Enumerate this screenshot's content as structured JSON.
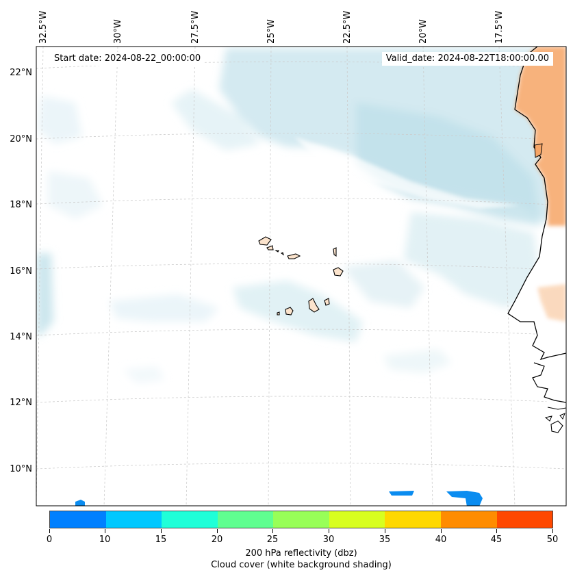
{
  "map": {
    "start_date": "Start date: 2024-08-22_00:00:00",
    "valid_date": "Valid_date: 2024-08-22T18:00:00.00",
    "lon_labels": [
      "32.5°W",
      "30°W",
      "27.5°W",
      "25°W",
      "22.5°W",
      "20°W",
      "17.5°W"
    ],
    "lat_labels": [
      "22°N",
      "20°N",
      "18°N",
      "16°N",
      "14°N",
      "12°N",
      "10°N"
    ]
  },
  "colorbar": {
    "ticks": [
      "0",
      "10",
      "15",
      "20",
      "25",
      "30",
      "35",
      "40",
      "45",
      "50"
    ],
    "colors": [
      "#0080ff",
      "#00c8ff",
      "#20ffd8",
      "#60ff90",
      "#98ff58",
      "#d8ff20",
      "#ffd800",
      "#ff8c00",
      "#ff4800"
    ],
    "title": "200 hPa reflectivity (dbz)",
    "subtitle": "Cloud cover (white background shading)"
  },
  "colors": {
    "cloud": "#cfe8ef",
    "land": "#f6a566",
    "island": "#fbe3cc",
    "reflectivity": "#0a8cf0"
  }
}
